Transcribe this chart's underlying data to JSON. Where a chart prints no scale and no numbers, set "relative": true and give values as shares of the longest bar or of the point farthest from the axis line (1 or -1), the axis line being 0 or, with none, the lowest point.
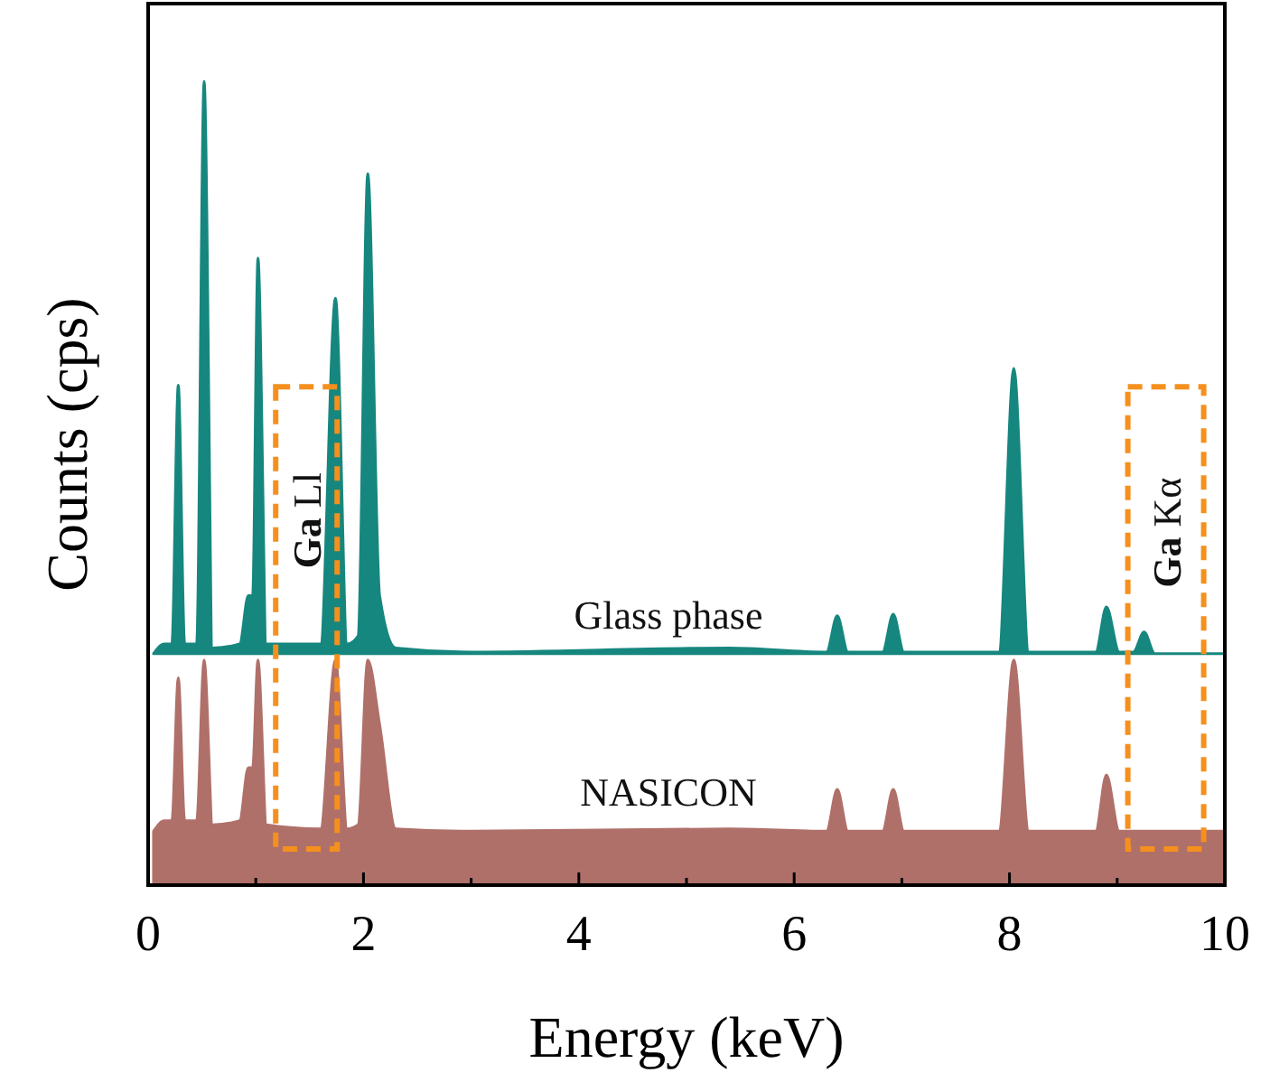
{
  "chart_data": {
    "type": "area",
    "relative": true,
    "xlabel": "Energy (keV)",
    "ylabel": "Counts (cps)",
    "xlim": [
      0,
      10
    ],
    "xticks": [
      0,
      {
        "value": 1,
        "label": null
      },
      2,
      {
        "value": 3,
        "label": null
      },
      4,
      {
        "value": 5,
        "label": null
      },
      6,
      {
        "value": 7,
        "label": null
      },
      8,
      {
        "value": 9,
        "label": null
      },
      10
    ],
    "series": [
      {
        "name": "NASICON",
        "color": "#b0706a",
        "x": [
          0.05,
          0.15,
          0.22,
          0.28,
          0.34,
          0.45,
          0.52,
          0.6,
          0.85,
          0.93,
          0.97,
          1.02,
          1.1,
          1.6,
          1.74,
          1.85,
          1.95,
          2.04,
          2.15,
          2.3,
          3,
          5.4,
          6.3,
          6.4,
          6.5,
          6.82,
          6.92,
          7.02,
          7.9,
          8.04,
          8.18,
          8.8,
          8.9,
          9.02,
          10
        ],
        "values": [
          0.067,
          0.08,
          0.08,
          0.258,
          0.08,
          0.08,
          0.28,
          0.075,
          0.08,
          0.146,
          0.146,
          0.28,
          0.075,
          0.07,
          0.28,
          0.07,
          0.075,
          0.28,
          0.2,
          0.07,
          0.067,
          0.07,
          0.067,
          0.119,
          0.067,
          0.067,
          0.119,
          0.067,
          0.067,
          0.28,
          0.067,
          0.067,
          0.137,
          0.067,
          0.067
        ]
      },
      {
        "name": "Glass phase",
        "color": "#16877e",
        "x": [
          0.05,
          0.15,
          0.22,
          0.28,
          0.34,
          0.45,
          0.52,
          0.6,
          0.85,
          0.93,
          0.97,
          1.02,
          1.1,
          1.6,
          1.74,
          1.85,
          1.95,
          2.04,
          2.15,
          2.3,
          3,
          5.4,
          6.3,
          6.4,
          6.5,
          6.82,
          6.92,
          7.02,
          7.9,
          8.04,
          8.18,
          8.8,
          8.9,
          9.02,
          9.15,
          9.25,
          9.35,
          10
        ],
        "values": [
          0.288,
          0.3,
          0.3,
          0.622,
          0.3,
          0.3,
          1.0,
          0.295,
          0.3,
          0.36,
          0.36,
          0.78,
          0.3,
          0.3,
          0.73,
          0.3,
          0.31,
          0.885,
          0.36,
          0.295,
          0.29,
          0.295,
          0.29,
          0.335,
          0.29,
          0.29,
          0.337,
          0.29,
          0.29,
          0.643,
          0.29,
          0.29,
          0.346,
          0.29,
          0.29,
          0.315,
          0.288,
          0.288
        ]
      }
    ],
    "annotations": [
      {
        "text": "Ga Ll",
        "x": 1.47,
        "y": 0.33
      },
      {
        "text": "Ga Kα",
        "x": 9.25,
        "y": 0.315
      }
    ]
  }
}
